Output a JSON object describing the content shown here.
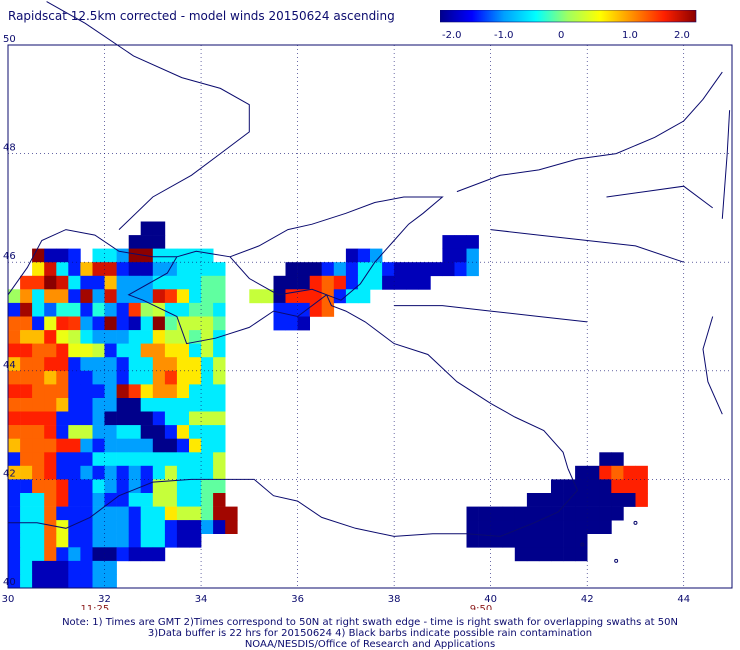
{
  "chart_data": {
    "type": "heatmap",
    "title": "Rapidscat 12.5km corrected - model winds 20150624 ascending",
    "xlabel": "",
    "ylabel": "",
    "xlim": [
      30,
      45
    ],
    "ylim": [
      40,
      50
    ],
    "x_ticks": [
      "30",
      "32",
      "34",
      "36",
      "38",
      "40",
      "42",
      "44"
    ],
    "y_ticks": [
      "40",
      "42",
      "44",
      "46",
      "48",
      "50"
    ],
    "grid": true,
    "colorbar": {
      "ticks": [
        "-2.0",
        "-1.0",
        "0",
        "1.0",
        "2.0"
      ],
      "range": [
        -2.0,
        2.0
      ],
      "colors": [
        "#00008b",
        "#0000ff",
        "#00a0ff",
        "#00ffff",
        "#a0ff60",
        "#ffff00",
        "#ff9000",
        "#ff2000",
        "#8b0000"
      ]
    },
    "swath_times": [
      {
        "lon": 31.8,
        "label": "11:25"
      },
      {
        "lon": 39.8,
        "label": "9:50"
      }
    ],
    "cell_size_deg": 0.25,
    "region_west": {
      "lon0": 30.0,
      "lat_top": 46.75,
      "rows": [
        "...........XX...........",
        "..........XXX...........",
        "..ABBC.UUJAAUUUUU.......",
        "..QKUCDKKCBBJJUUUU......",
        ".PPAKUCCDJJJUUUUVV......",
        "MNUNNCRJKJJJKPQUVV..TT..",
        "CRUSLLCLJCPMTUUVVU......",
        "EECGFPJCWCBUWVTTTV......",
        "EDDFGTUJJJUUQTTVTU......",
        "FFEEFGGTCUUNNQQUTU......",
        "DEEFFCJJJCUUNNQQUT......",
        "EEEDECCJJCUUNPQQUT......",
        "FFEEECCCJRPQNNQUUU......",
        "EEEEDCCJJXXUUUUUUU......",
        "FFFFCCCJXXXXCUUTTT......",
        "EEEFCTTJJUUXXCQUUU......",
        "DEEEFFJCJJJJXXCQUU......",
        "CEEFCCCUUUUUUUUUUT......",
        "DDEFCCJCJCJCUTUUUT......",
        "CCEEFCCUJCJCTTUUVV......",
        "CUUEFCCJCCUUTTUUVR......",
        "CUUECCCJJJCUUQTTVRR.....",
        "CUUEGCCJJJCUUCBBJBR.....",
        "CUUEGCCJJJCUUCBB........",
        "CUUECJCXXCBBB...........",
        "CUBBBCCJJ...............",
        "CUBBBCCJJ..............."
      ]
    },
    "region_north": {
      "lon0": 35.5,
      "lat_top": 46.5,
      "rows": [
        "..............BBB..............",
        "......BCJ.....BBJ..............",
        ".XXXCJCUUCBBBBBCJ..............",
        "XXXFEFCUUBBBB..................",
        "XFFFECUU.......................",
        "CCCFE..........................",
        "CCB............................"
      ]
    },
    "region_east": {
      "lon0": 39.5,
      "lat_top": 42.5,
      "rows": [
        "...........XX....",
        ".........XXFEFF..",
        ".......XXXXXFFF..",
        ".....XXXXXXXXXF..",
        "XXXXXXXXXXXXX....",
        "XXXXXXXXXXXX.....",
        "XXXXXXXXXX.......",
        "....XXXXXX......."
      ]
    },
    "legend_key": {
      "X": -2.2,
      "B": -1.8,
      "C": -1.4,
      "J": -1.0,
      "U": -0.6,
      "V": -0.2,
      "T": 0.2,
      "Q": 0.6,
      "N": 1.0,
      "P": 1.4,
      "K": 1.7,
      "A": 2.0,
      "D": 0.8,
      "E": 1.2,
      "F": 1.5,
      "G": 0.4,
      "L": -0.4,
      "M": 0.0,
      "R": 1.9,
      "S": -1.2,
      "W": 2.1
    }
  },
  "notes": {
    "line1": "Note: 1) Times are GMT  2)Times correspond to 50N at right swath edge - time is right swath for overlapping swaths at 50N",
    "line2": "3)Data buffer is 22 hrs for 20150624  4) Black barbs indicate possible rain contamination",
    "line3": "NOAA/NESDIS/Office of Research and Applications"
  }
}
